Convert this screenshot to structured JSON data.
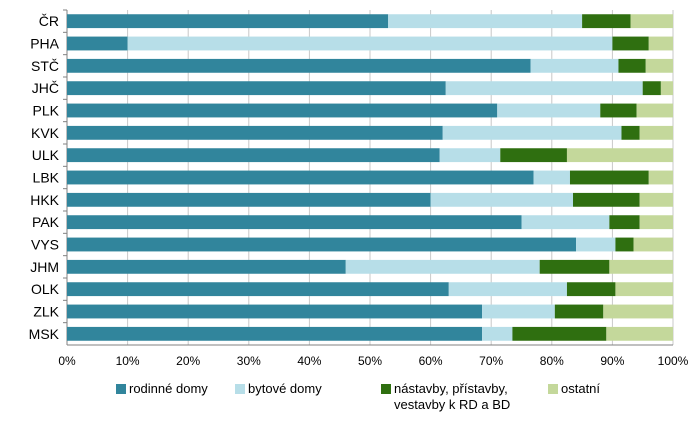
{
  "chart_data": {
    "type": "bar",
    "orientation": "horizontal",
    "stacked": true,
    "percent_stacked": true,
    "categories": [
      "ČR",
      "PHA",
      "STČ",
      "JHČ",
      "PLK",
      "KVK",
      "ULK",
      "LBK",
      "HKK",
      "PAK",
      "VYS",
      "JHM",
      "OLK",
      "ZLK",
      "MSK"
    ],
    "series": [
      {
        "name": "rodinné domy",
        "color": "#31859c",
        "values": [
          53,
          10,
          76.5,
          62.5,
          71,
          62,
          61.5,
          77,
          60,
          75,
          84,
          46,
          63,
          68.5,
          68.5
        ]
      },
      {
        "name": "bytové domy",
        "color": "#b7dee8",
        "values": [
          32,
          80,
          14.5,
          32.5,
          17,
          29.5,
          10,
          6,
          23.5,
          14.5,
          6.5,
          32,
          19.5,
          12,
          5
        ]
      },
      {
        "name": "nástavby, přístavby, vestavby k RD a BD",
        "color": "#2f6f10",
        "values": [
          8,
          6,
          4.5,
          3,
          6,
          3,
          11,
          13,
          11,
          5,
          3,
          11.5,
          8,
          8,
          15.5
        ]
      },
      {
        "name": "ostatní",
        "color": "#c4d89b",
        "values": [
          7,
          4,
          4.5,
          2,
          6,
          5.5,
          17.5,
          4,
          5.5,
          5.5,
          6.5,
          10.5,
          9.5,
          11.5,
          11
        ]
      }
    ],
    "xlim": [
      0,
      100
    ],
    "x_tick_labels": [
      "0%",
      "10%",
      "20%",
      "30%",
      "40%",
      "50%",
      "60%",
      "70%",
      "80%",
      "90%",
      "100%"
    ],
    "legend": {
      "placement": "bottom",
      "entries": [
        {
          "label": "rodinné domy"
        },
        {
          "label": "bytové domy"
        },
        {
          "label": [
            "nástavby, přístavby,",
            "vestavby k RD a BD"
          ]
        },
        {
          "label": "ostatní"
        }
      ]
    },
    "grid": "vertical"
  }
}
